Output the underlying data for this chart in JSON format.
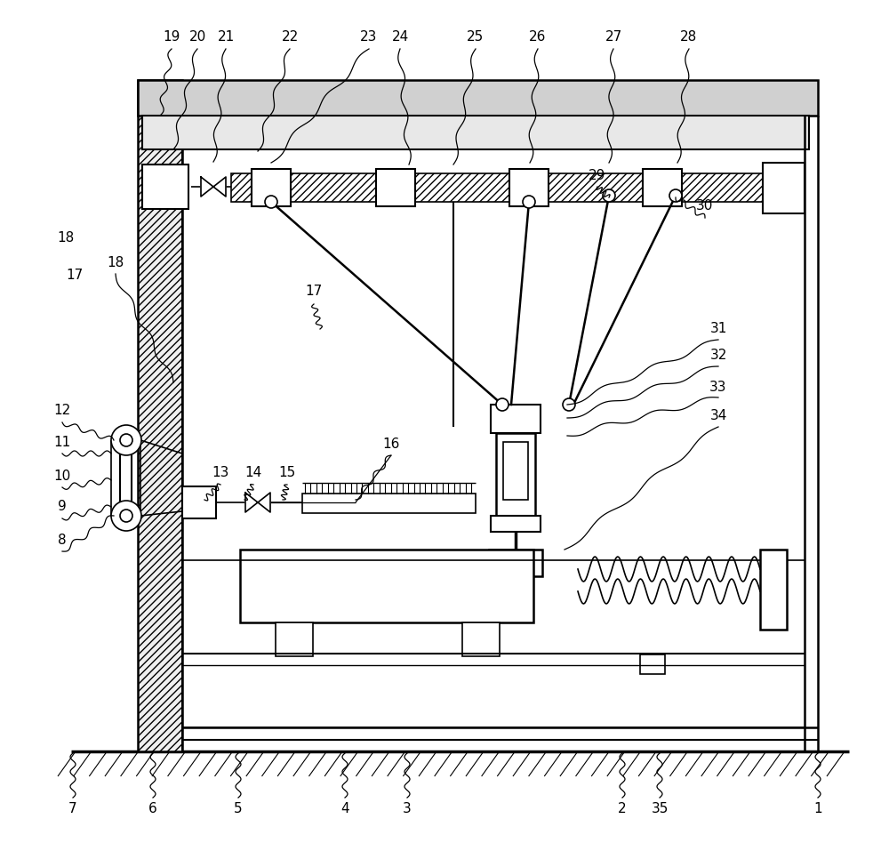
{
  "bg": "#ffffff",
  "lc": "#000000",
  "fw": 10.0,
  "fh": 9.57
}
